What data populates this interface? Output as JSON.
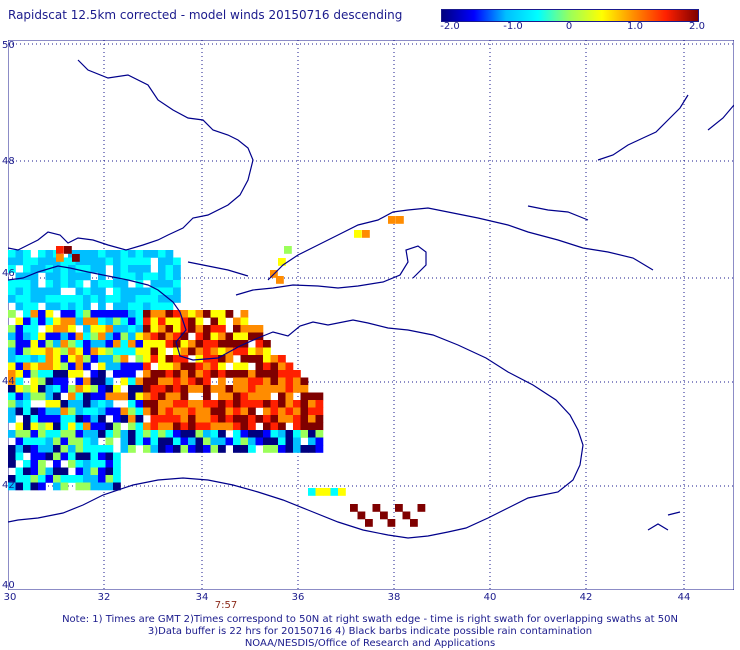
{
  "title": "Rapidscat 12.5km corrected - model winds 20150716 descending",
  "colorbar": {
    "ticks": [
      "-2.0",
      "-1.0",
      "0",
      "1.0",
      "2.0"
    ],
    "colors": [
      "#00007f",
      "#0000ff",
      "#00bfff",
      "#00ffff",
      "#9bff5a",
      "#ffff00",
      "#ff8c00",
      "#ff2000",
      "#7f0000"
    ]
  },
  "lat_labels": [
    "50",
    "48",
    "46",
    "44",
    "42",
    "40"
  ],
  "lon_labels": [
    "30",
    "32",
    "34",
    "36",
    "38",
    "40",
    "42",
    "44"
  ],
  "time_label": "7:57",
  "notes": [
    "Note: 1) Times are GMT 2)Times correspond to 50N at right swath edge - time is right swath for overlapping swaths at 50N",
    "3)Data buffer is 22 hrs for 20150716 4) Black barbs indicate possible rain contamination",
    "NOAA/NESDIS/Office of Research and Applications"
  ]
}
